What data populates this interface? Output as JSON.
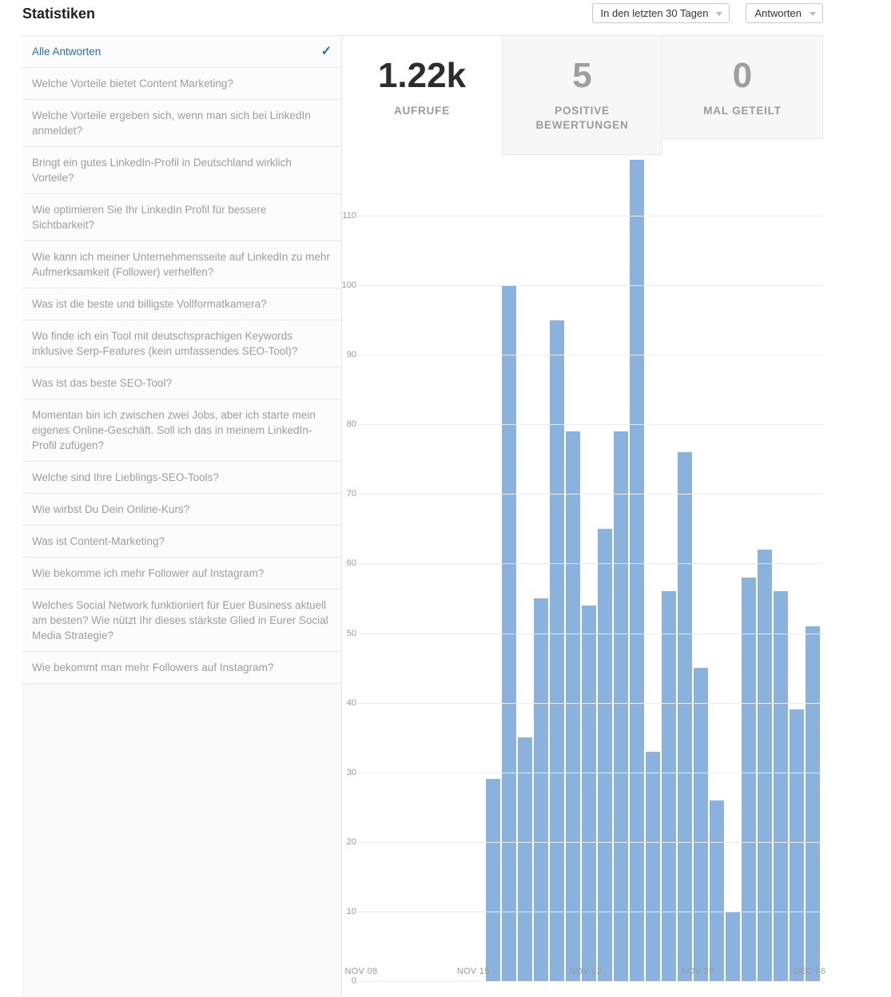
{
  "page": {
    "title": "Statistiken"
  },
  "filters": {
    "time_range": {
      "value": "In den letzten 30 Tagen"
    },
    "content_type": {
      "value": "Antworten"
    }
  },
  "sidebar": {
    "selected": {
      "label": "Alle Antworten",
      "check_icon": "✓"
    },
    "items": [
      "Welche Vorteile bietet Content Marketing?",
      "Welche Vorteile ergeben sich, wenn man sich bei LinkedIn anmeldet?",
      "Bringt ein gutes LinkedIn-Profil in Deutschland wirklich Vorteile?",
      "Wie optimieren Sie Ihr LinkedIn Profil für bessere Sichtbarkeit?",
      "Wie kann ich meiner Unternehmensseite auf LinkedIn zu mehr Aufmerksamkeit (Follower) verhelfen?",
      "Was ist die beste und billigste Vollformatkamera?",
      "Wo finde ich ein Tool mit deutschsprachigen Keywords inklusive Serp-Features (kein umfassendes SEO-Tool)?",
      "Was ist das beste SEO-Tool?",
      "Momentan bin ich zwischen zwei Jobs, aber ich starte mein eigenes Online-Geschäft. Soll ich das in meinem LinkedIn-Profil zufügen?",
      "Welche sind Ihre Lieblings-SEO-Tools?",
      "Wie wirbst Du Dein Online-Kurs?",
      "Was ist Content-Marketing?",
      "Wie bekomme ich mehr Follower auf Instagram?",
      "Welches Social Network funktioniert für Euer Business aktuell am besten? Wie nützt Ihr dieses stärkste Glied in Eurer Social Media Strategie?",
      "Wie bekommt man mehr Followers auf Instagram?"
    ]
  },
  "stats_cards": [
    {
      "value": "1.22k",
      "label": "AUFRUFE",
      "selected": true
    },
    {
      "value": "5",
      "label": "POSITIVE BEWERTUNGEN",
      "selected": false
    },
    {
      "value": "0",
      "label": "MAL GETEILT",
      "selected": false
    }
  ],
  "colors": {
    "accent_blue": "#2b6dad",
    "bar_blue": "#8ab2dc",
    "muted_text": "#9b9b9b"
  },
  "chart_data": {
    "type": "bar",
    "title": "",
    "xlabel": "",
    "ylabel": "",
    "values": [
      29,
      100,
      35,
      55,
      95,
      79,
      54,
      65,
      79,
      118,
      33,
      56,
      76,
      45,
      26,
      10,
      58,
      62,
      56,
      39,
      51
    ],
    "x_tick_labels": [
      "NOV 08",
      "NOV 15",
      "NOV 22",
      "NOV 29",
      "DEC 06"
    ],
    "y_ticks": [
      0,
      10,
      20,
      30,
      40,
      50,
      60,
      70,
      80,
      90,
      100,
      110
    ],
    "ylim": [
      0,
      120
    ],
    "grid": true,
    "legend": false,
    "bar_color": "#8ab2dc"
  }
}
